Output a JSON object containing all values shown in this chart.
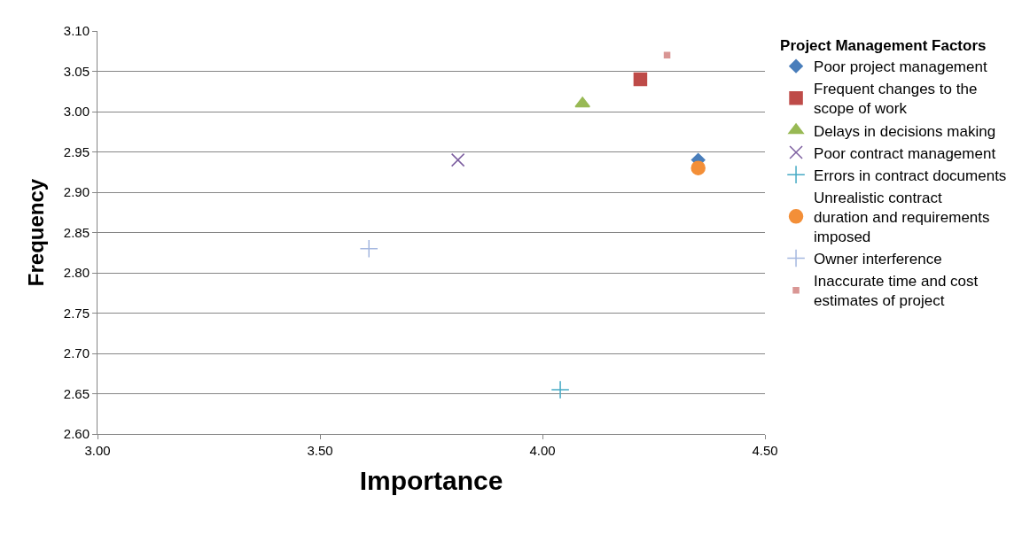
{
  "chart_data": {
    "type": "scatter",
    "xlabel": "Importance",
    "ylabel": "Frequency",
    "legend_title": "Project Management Factors",
    "xlim": [
      3.0,
      4.5
    ],
    "xticks": [
      {
        "value": 3.0,
        "label": "3.00"
      },
      {
        "value": 3.5,
        "label": "3.50"
      },
      {
        "value": 4.0,
        "label": "4.00"
      },
      {
        "value": 4.5,
        "label": "4.50"
      }
    ],
    "ylim": [
      2.6,
      3.1
    ],
    "yticks": [
      {
        "value": 2.6,
        "label": "2.60"
      },
      {
        "value": 2.65,
        "label": "2.65"
      },
      {
        "value": 2.7,
        "label": "2.70"
      },
      {
        "value": 2.75,
        "label": "2.75"
      },
      {
        "value": 2.8,
        "label": "2.80"
      },
      {
        "value": 2.85,
        "label": "2.85"
      },
      {
        "value": 2.9,
        "label": "2.90"
      },
      {
        "value": 2.95,
        "label": "2.95"
      },
      {
        "value": 3.0,
        "label": "3.00"
      },
      {
        "value": 3.05,
        "label": "3.05"
      },
      {
        "value": 3.1,
        "label": "3.10"
      }
    ],
    "grid": "y",
    "legend": "top right",
    "series": [
      {
        "name": "Poor project management",
        "color": "#4a7ebb",
        "marker": "diamond",
        "x": [
          4.35
        ],
        "values": [
          2.94
        ]
      },
      {
        "name": "Frequent changes to the scope of work",
        "color": "#be4b48",
        "marker": "square",
        "x": [
          4.22
        ],
        "values": [
          3.04
        ]
      },
      {
        "name": "Delays in decisions making",
        "color": "#98b954",
        "marker": "triangle",
        "x": [
          4.09
        ],
        "values": [
          3.01
        ]
      },
      {
        "name": "Poor contract management",
        "color": "#7d5fa0",
        "marker": "x",
        "x": [
          3.81
        ],
        "values": [
          2.94
        ]
      },
      {
        "name": "Errors in contract documents",
        "color": "#46aac5",
        "marker": "cross",
        "x": [
          4.04
        ],
        "values": [
          2.655
        ]
      },
      {
        "name": "Unrealistic contract duration and requirements imposed",
        "color": "#f38f38",
        "marker": "circle",
        "x": [
          4.35
        ],
        "values": [
          2.93
        ]
      },
      {
        "name": "Owner interference",
        "color": "#a5b8e0",
        "marker": "cross",
        "x": [
          3.61
        ],
        "values": [
          2.83
        ]
      },
      {
        "name": "Inaccurate time and cost estimates of project",
        "color": "#d99694",
        "marker": "square",
        "x": [
          4.28
        ],
        "values": [
          3.07
        ]
      }
    ]
  }
}
